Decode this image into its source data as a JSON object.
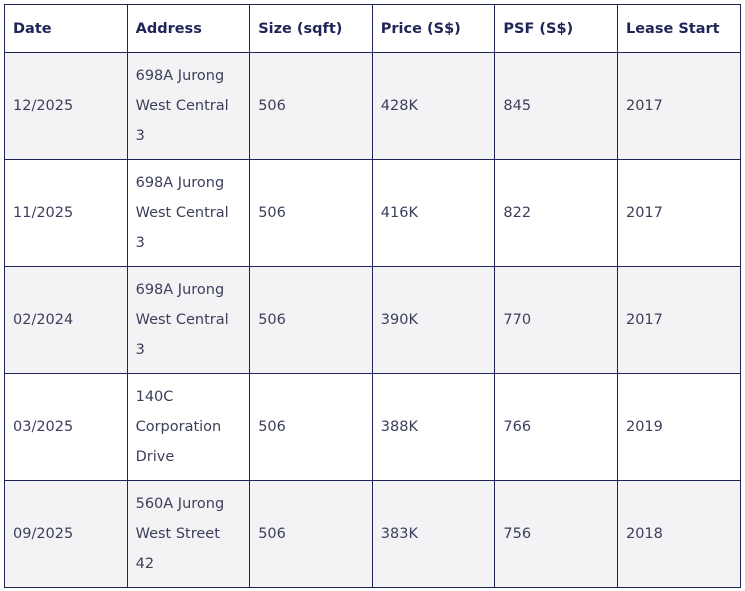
{
  "table": {
    "header": [
      "Date",
      "Address",
      "Size (sqft)",
      "Price (S$)",
      "PSF (S$)",
      "Lease Start"
    ],
    "rows": [
      [
        "12/2025",
        "698A Jurong West Central 3",
        "506",
        "428K",
        "845",
        "2017"
      ],
      [
        "11/2025",
        "698A Jurong West Central 3",
        "506",
        "416K",
        "822",
        "2017"
      ],
      [
        "02/2024",
        "698A Jurong West Central 3",
        "506",
        "390K",
        "770",
        "2017"
      ],
      [
        "03/2025",
        "140C Corporation Drive",
        "506",
        "388K",
        "766",
        "2019"
      ],
      [
        "09/2025",
        "560A Jurong West Street 42",
        "506",
        "383K",
        "756",
        "2018"
      ]
    ]
  }
}
